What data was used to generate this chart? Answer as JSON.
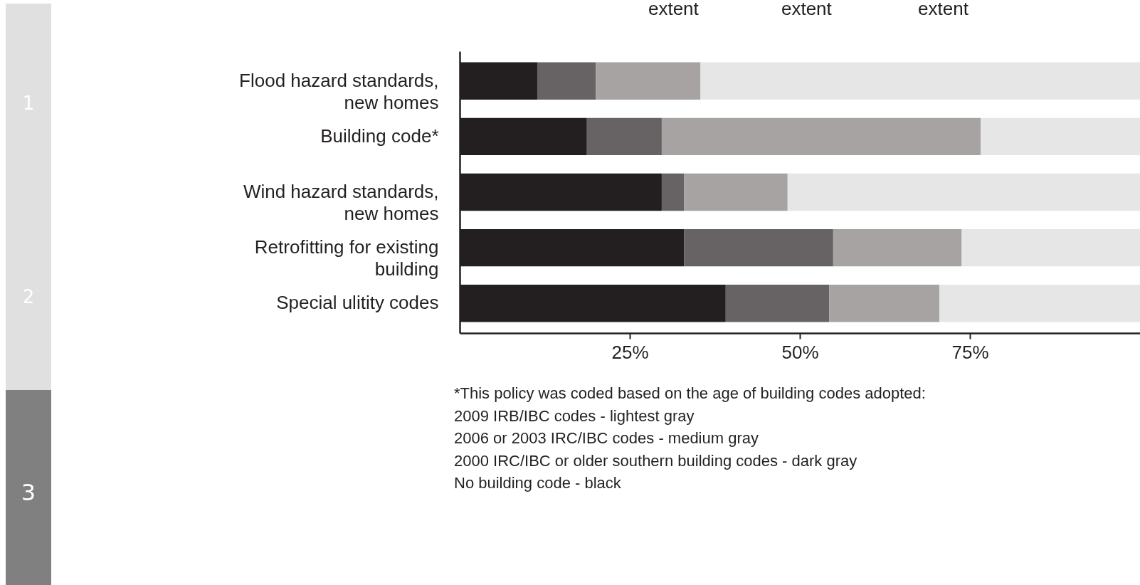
{
  "chart_data": {
    "type": "bar",
    "orientation": "horizontal",
    "stacked": true,
    "categories": [
      "Flood hazard standards,\nnew homes",
      "Building code*",
      "Wind hazard standards,\nnew homes",
      "Retrofitting for existing\nbuilding",
      "Special ulitity codes"
    ],
    "series": [
      {
        "color": "#231f20",
        "values": [
          11.4,
          18.7,
          29.7,
          33.0,
          39.1
        ]
      },
      {
        "color": "#676263",
        "values": [
          8.6,
          11.0,
          3.3,
          21.9,
          15.2
        ]
      },
      {
        "color": "#a7a3a3",
        "values": [
          15.4,
          46.9,
          15.2,
          18.9,
          16.2
        ]
      },
      {
        "color": "#e6e6e6",
        "values": [
          64.6,
          23.4,
          51.8,
          26.2,
          29.5
        ]
      }
    ],
    "xlim": [
      0,
      100
    ],
    "xticks": [
      {
        "value": 25,
        "label": "25%"
      },
      {
        "value": 50,
        "label": "50%"
      },
      {
        "value": 75,
        "label": "75%"
      }
    ],
    "grid": false,
    "annotations": [
      "extent",
      "extent",
      "extent",
      "1",
      "2",
      "3",
      "*This policy was coded based on the age of building codes adopted:",
      "2009 IRB/IBC codes - lightest gray",
      "2006 or 2003 IRC/IBC codes - medium gray",
      "2000 IRC/IBC or older southern building codes - dark gray",
      "No building code - black"
    ]
  }
}
